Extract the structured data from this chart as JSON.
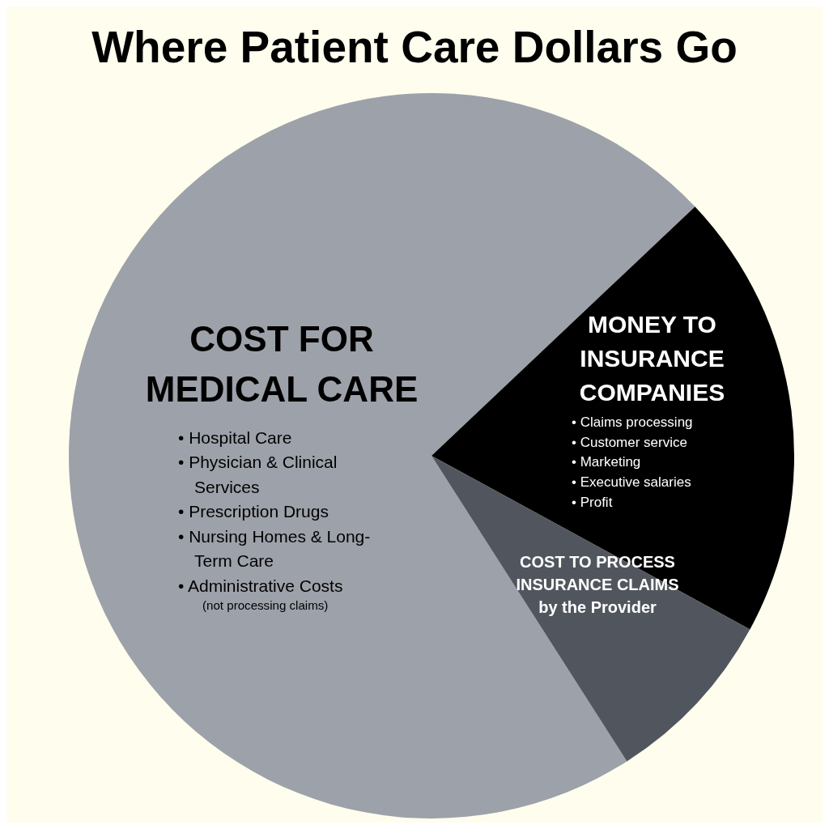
{
  "chart_data": {
    "type": "pie",
    "title": "Where Patient Care Dollars Go",
    "categories": [
      "COST FOR MEDICAL CARE",
      "MONEY TO INSURANCE COMPANIES",
      "COST TO PROCESS INSURANCE CLAIMS by the Provider"
    ],
    "values": [
      72,
      20,
      8
    ],
    "colors": [
      "#9da1a9",
      "#000000",
      "#51565e"
    ],
    "annotations": [
      "• Hospital Care",
      "• Physician & Clinical Services",
      "• Prescription Drugs",
      "• Nursing Homes & Long-Term Care",
      "• Administrative Costs",
      "(not processing claims)",
      "• Claims processing",
      "• Customer service",
      "• Marketing",
      "• Executive salaries",
      "• Profit"
    ],
    "legend": false
  }
}
